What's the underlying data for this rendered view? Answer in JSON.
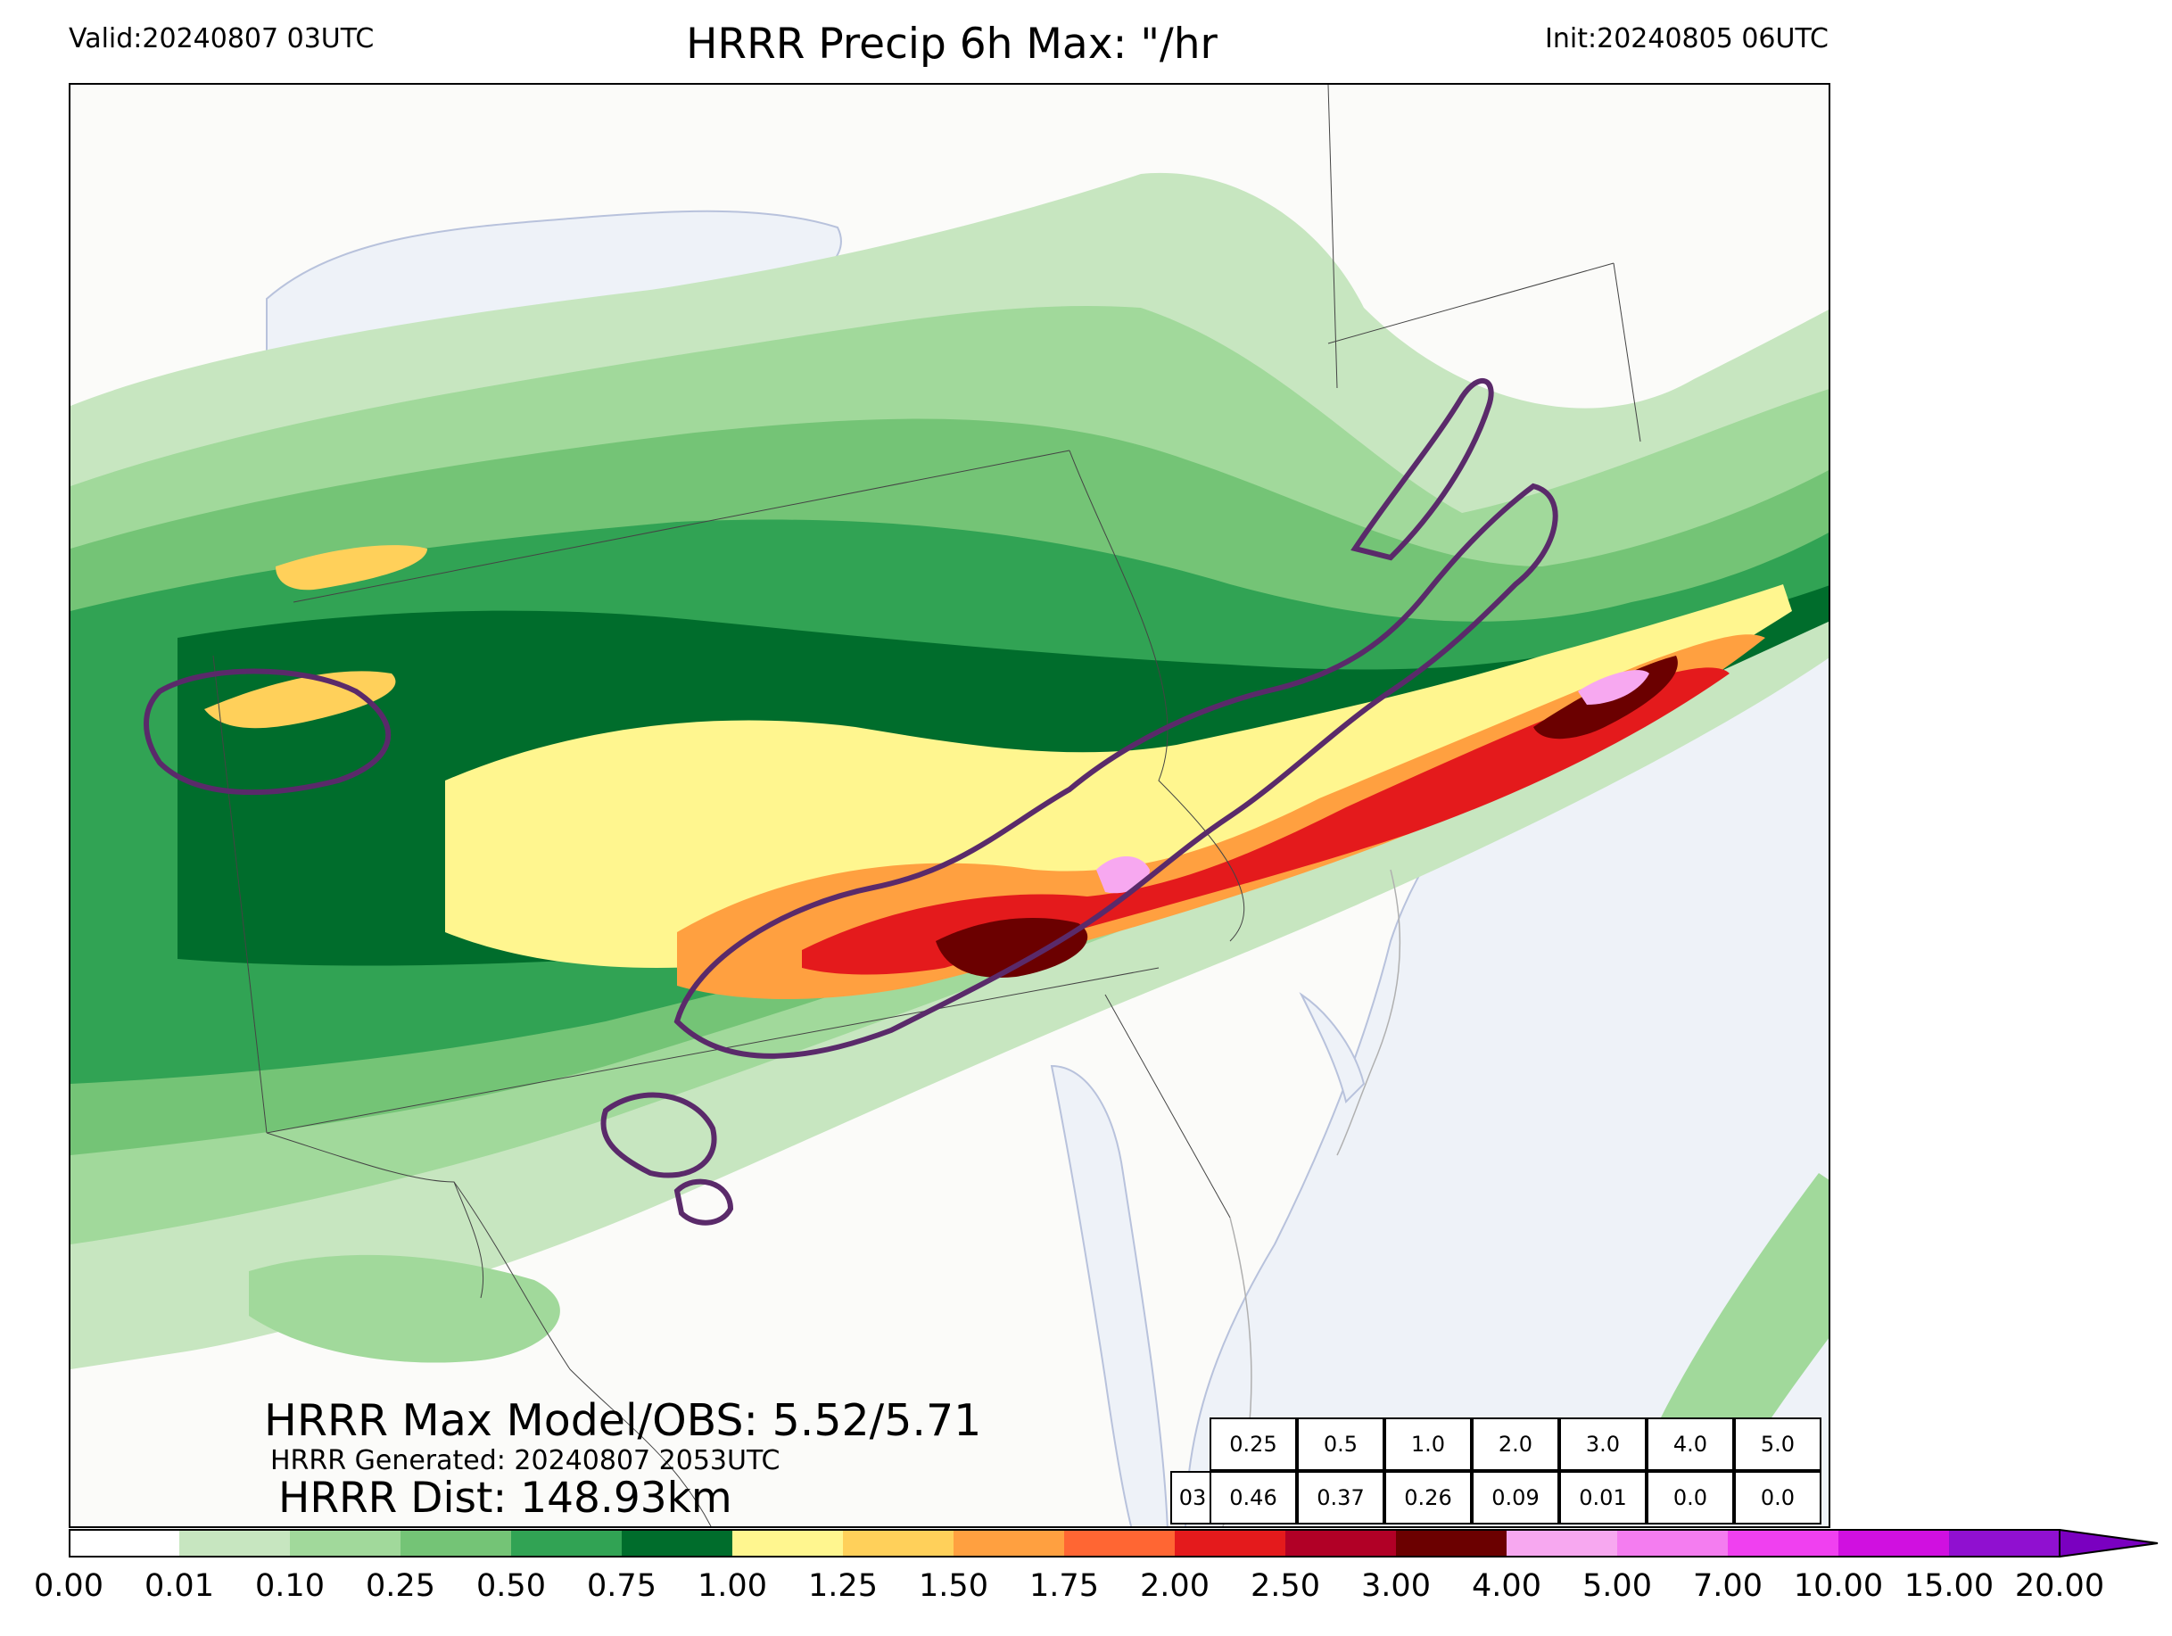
{
  "header": {
    "valid": "Valid:20240807 03UTC",
    "title": "HRRR Precip 6h Max: \"/hr",
    "init": "Init:20240805 06UTC"
  },
  "annotations": {
    "max_model_obs": "HRRR Max Model/OBS: 5.52/5.71",
    "generated": "HRRR Generated: 20240807 2053UTC",
    "distance": "HRRR Dist: 148.93km"
  },
  "stats_table": {
    "thresholds": [
      "0.25",
      "0.5",
      "1.0",
      "2.0",
      "3.0",
      "4.0",
      "5.0"
    ],
    "row_label": "03",
    "values": [
      "0.46",
      "0.37",
      "0.26",
      "0.09",
      "0.01",
      "0.0",
      "0.0"
    ]
  },
  "colorbar": {
    "ticks": [
      "0.00",
      "0.01",
      "0.10",
      "0.25",
      "0.50",
      "0.75",
      "1.00",
      "1.25",
      "1.50",
      "1.75",
      "2.00",
      "2.50",
      "3.00",
      "4.00",
      "5.00",
      "7.00",
      "10.00",
      "15.00",
      "20.00"
    ],
    "colors": [
      "#ffffff",
      "#c7e6c0",
      "#a1d99b",
      "#74c476",
      "#31a354",
      "#006d2c",
      "#fff68f",
      "#ffd05a",
      "#ffa040",
      "#ff6633",
      "#e41a1c",
      "#b10026",
      "#6b0000",
      "#f7a8f0",
      "#f47df0",
      "#f040f0",
      "#d010e0",
      "#9010d0"
    ],
    "extend_color": "#7a00c0"
  },
  "map_colors": {
    "background": "#fbfbf9",
    "water": "#eef2f8",
    "obs_contour": "#5a2a6a"
  }
}
